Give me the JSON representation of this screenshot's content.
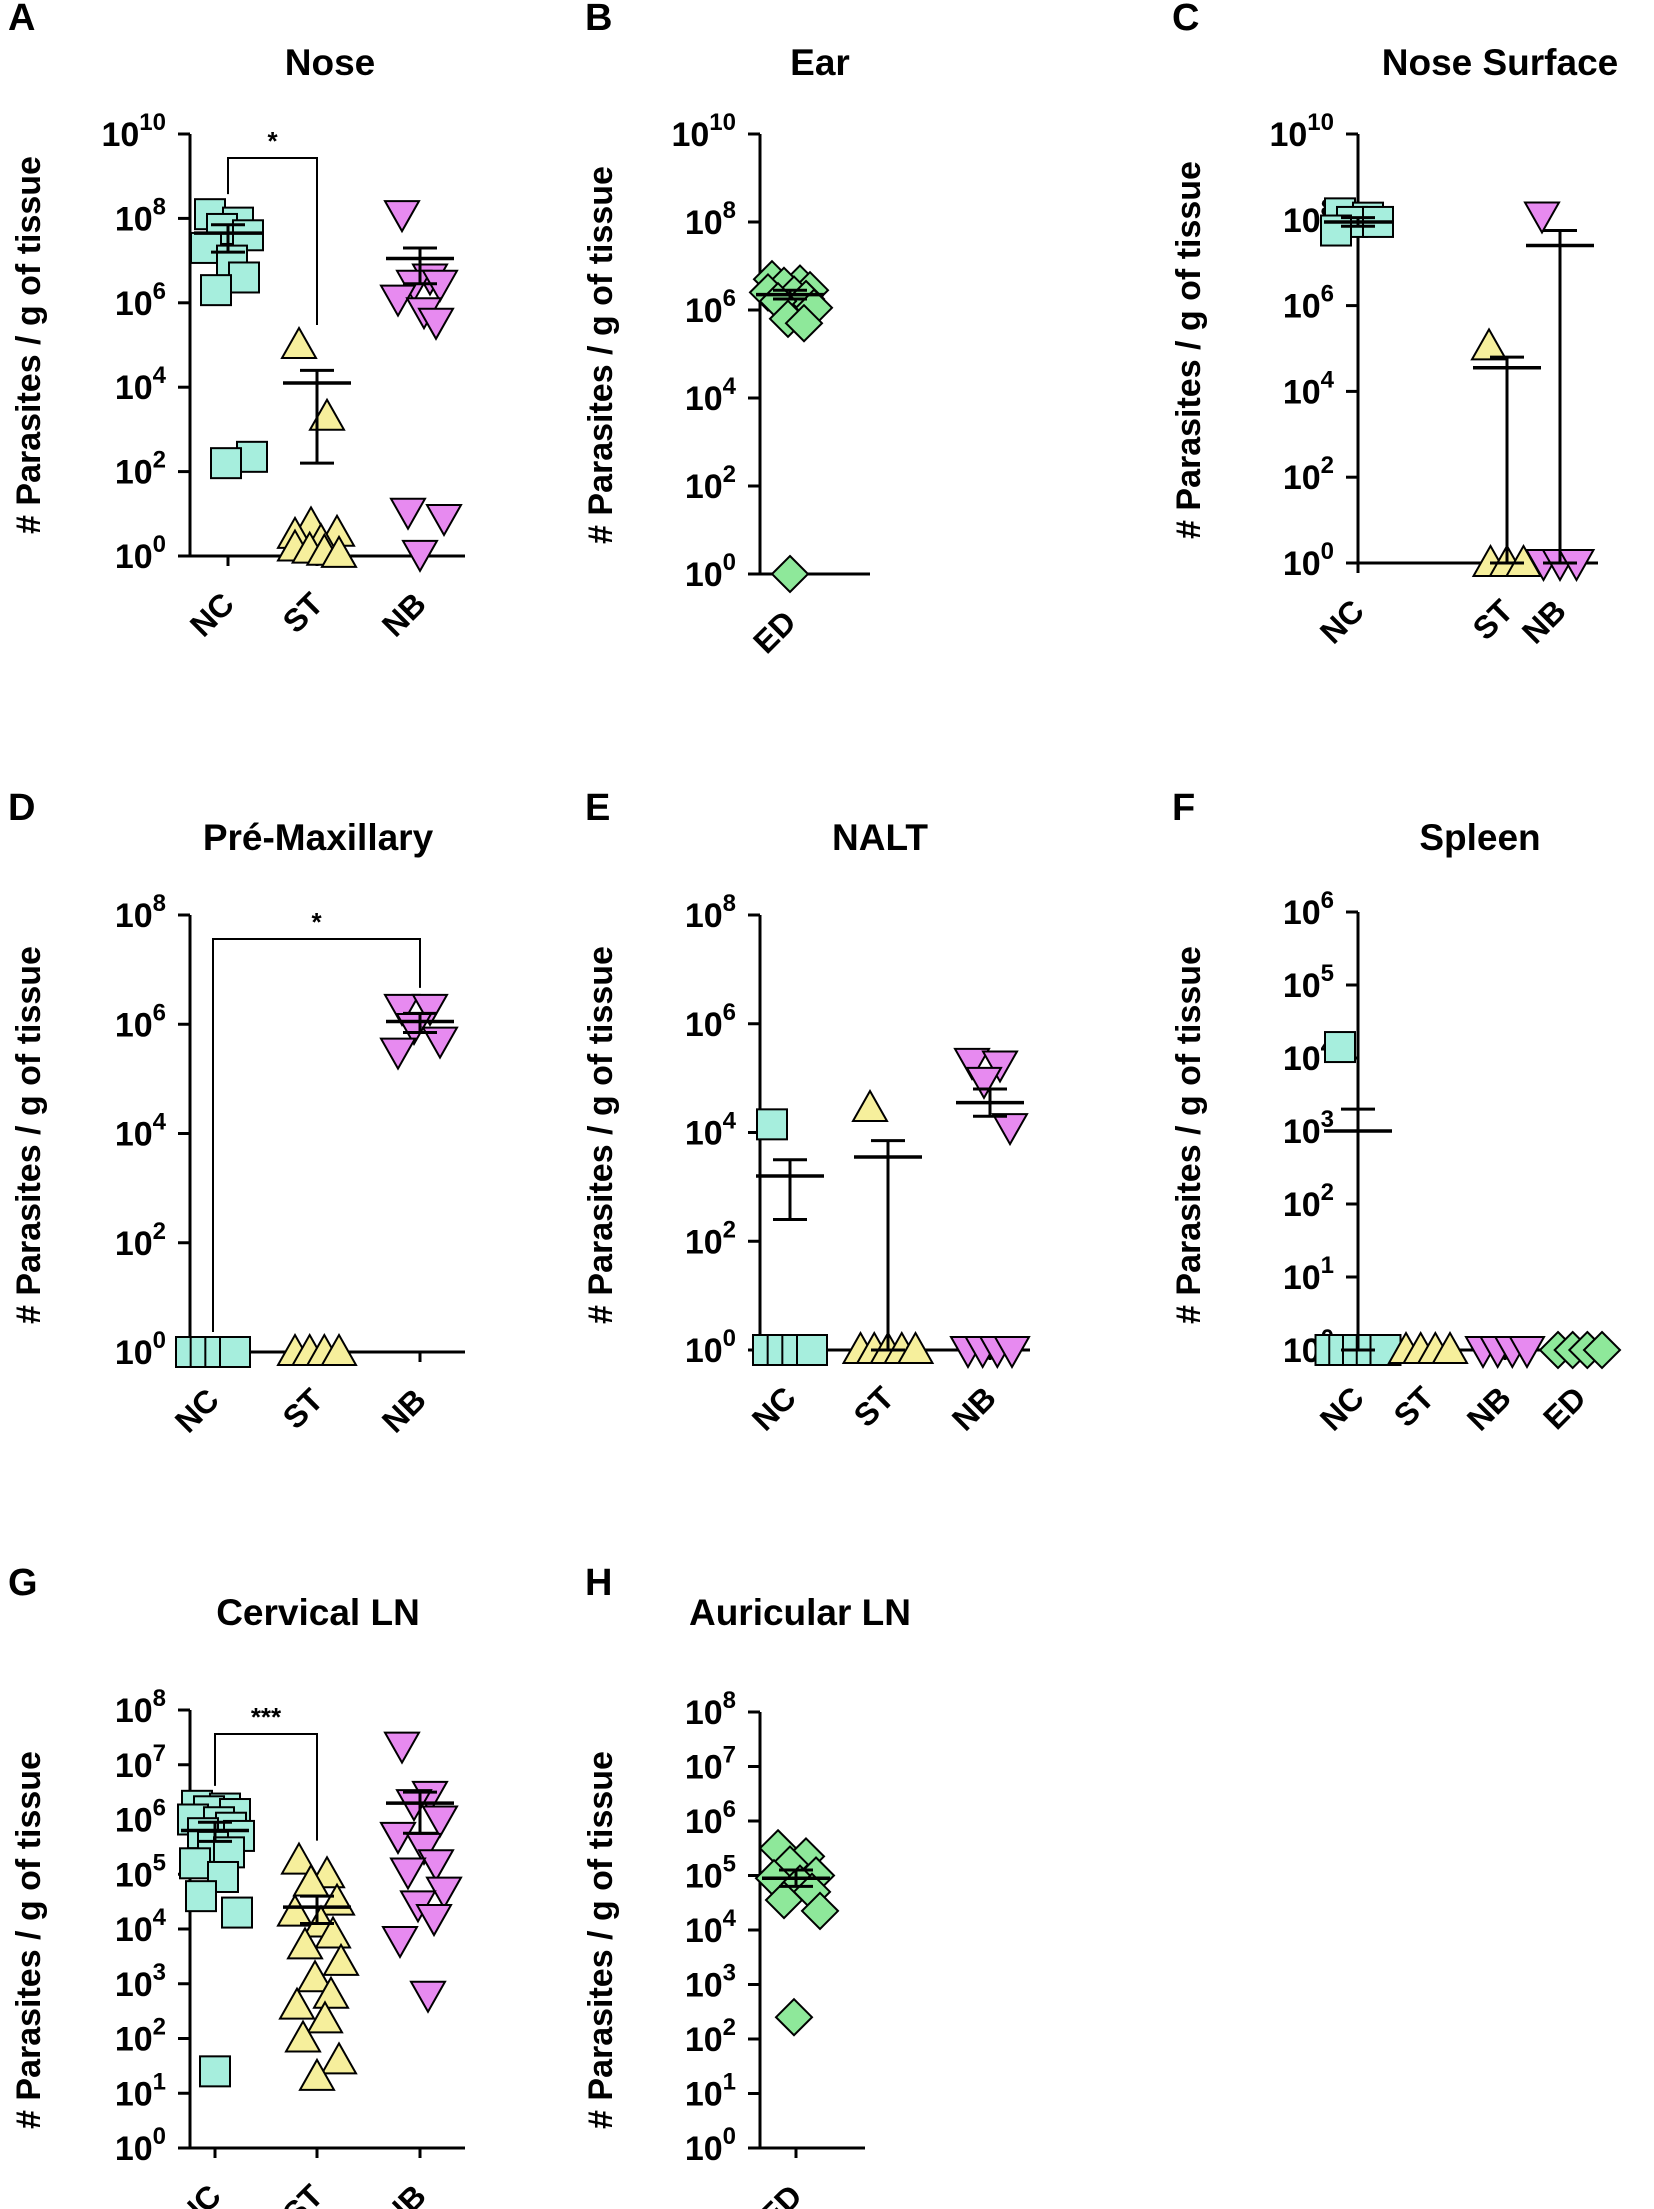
{
  "figure": {
    "ylabel": "# Parasites / g of tissue",
    "colors": {
      "NC": "#a6eedd",
      "ST": "#f6ef9c",
      "NB": "#e78af0",
      "ED": "#8ee89a",
      "stroke": "#000000"
    },
    "shapes": {
      "NC": "square",
      "ST": "triangle-up",
      "NB": "triangle-down",
      "ED": "diamond"
    }
  },
  "chart_data": [
    {
      "type": "scatter",
      "letter": "A",
      "title": "Nose",
      "ylabel": "# Parasites / g of tissue",
      "yscale": "log10",
      "ylim_exp": [
        0,
        10
      ],
      "yticks": [
        {
          "base": "10",
          "exp": "10"
        },
        {
          "base": "10",
          "exp": "8"
        },
        {
          "base": "10",
          "exp": "6"
        },
        {
          "base": "10",
          "exp": "4"
        },
        {
          "base": "10",
          "exp": "2"
        },
        {
          "base": "10",
          "exp": "0"
        }
      ],
      "ytick_values": [
        10,
        8,
        6,
        4,
        2,
        0
      ],
      "categories": [
        "NC",
        "ST",
        "NB"
      ],
      "groups": [
        {
          "name": "NC",
          "log_values": [
            8.1,
            7.9,
            7.75,
            7.6,
            7.3,
            7.0,
            6.6,
            6.3,
            2.35,
            2.2
          ],
          "mean_log": 7.65,
          "sem_log": [
            7.85,
            7.2
          ]
        },
        {
          "name": "ST",
          "log_values": [
            5.0,
            3.3,
            0.75,
            0.55,
            0.5,
            0.35,
            0.2,
            0.15,
            0.1,
            0.05
          ],
          "mean_log": 4.1,
          "sem_log": [
            4.4,
            2.2
          ]
        },
        {
          "name": "NB",
          "log_values": [
            8.1,
            6.6,
            6.45,
            6.45,
            6.1,
            5.8,
            5.55,
            1.05,
            0.9,
            0.05
          ],
          "mean_log": 7.05,
          "sem_log": [
            7.3,
            6.45
          ]
        }
      ],
      "significance": [
        {
          "from": "NC",
          "to": "ST",
          "label": "*"
        }
      ]
    },
    {
      "type": "scatter",
      "letter": "B",
      "title": "Ear",
      "ylabel": "# Parasites / g of tissue",
      "yscale": "log10",
      "ylim_exp": [
        0,
        10
      ],
      "yticks": [
        {
          "base": "10",
          "exp": "10"
        },
        {
          "base": "10",
          "exp": "8"
        },
        {
          "base": "10",
          "exp": "6"
        },
        {
          "base": "10",
          "exp": "4"
        },
        {
          "base": "10",
          "exp": "2"
        },
        {
          "base": "10",
          "exp": "0"
        }
      ],
      "ytick_values": [
        10,
        8,
        6,
        4,
        2,
        0
      ],
      "categories": [
        "ED"
      ],
      "groups": [
        {
          "name": "ED",
          "log_values": [
            6.7,
            6.6,
            6.55,
            6.45,
            6.4,
            6.35,
            6.25,
            6.2,
            6.05,
            5.8,
            5.7,
            0.0
          ],
          "mean_log": 6.35,
          "sem_log": [
            6.45,
            6.25
          ]
        }
      ],
      "significance": []
    },
    {
      "type": "scatter",
      "letter": "C",
      "title": "Nose Surface",
      "ylabel": "# Parasites / g of tissue",
      "yscale": "log10",
      "ylim_exp": [
        0,
        10
      ],
      "yticks": [
        {
          "base": "10",
          "exp": "10"
        },
        {
          "base": "10",
          "exp": "8"
        },
        {
          "base": "10",
          "exp": "6"
        },
        {
          "base": "10",
          "exp": "4"
        },
        {
          "base": "10",
          "exp": "2"
        },
        {
          "base": "10",
          "exp": "0"
        }
      ],
      "ytick_values": [
        10,
        8,
        6,
        4,
        2,
        0
      ],
      "categories": [
        "NC",
        "ST",
        "NB"
      ],
      "groups": [
        {
          "name": "NC",
          "log_values": [
            8.15,
            8.05,
            7.95,
            7.95,
            7.75
          ],
          "mean_log": 7.95,
          "sem_log": [
            8.05,
            7.85
          ]
        },
        {
          "name": "ST",
          "log_values": [
            5.05,
            0.0,
            0.0,
            0.0
          ],
          "mean_log": 4.55,
          "sem_log": [
            4.8,
            0.0
          ]
        },
        {
          "name": "NB",
          "log_values": [
            8.1,
            0.0,
            0.0,
            0.0
          ],
          "mean_log": 7.4,
          "sem_log": [
            7.75,
            0.0
          ]
        }
      ],
      "significance": []
    },
    {
      "type": "scatter",
      "letter": "D",
      "title": "Pré-Maxillary",
      "ylabel": "# Parasites / g of tissue",
      "yscale": "log10",
      "ylim_exp": [
        0,
        8
      ],
      "yticks": [
        {
          "base": "10",
          "exp": "8"
        },
        {
          "base": "10",
          "exp": "6"
        },
        {
          "base": "10",
          "exp": "4"
        },
        {
          "base": "10",
          "exp": "2"
        },
        {
          "base": "10",
          "exp": "0"
        }
      ],
      "ytick_values": [
        8,
        6,
        4,
        2,
        0
      ],
      "categories": [
        "NC",
        "ST",
        "NB"
      ],
      "groups": [
        {
          "name": "NC",
          "log_values": [
            0.0,
            0.0,
            0.0,
            0.0
          ],
          "mean_log": null,
          "sem_log": null
        },
        {
          "name": "ST",
          "log_values": [
            0.0,
            0.0,
            0.0,
            0.0
          ],
          "mean_log": null,
          "sem_log": null
        },
        {
          "name": "NB",
          "log_values": [
            6.3,
            6.3,
            5.95,
            5.7,
            5.5
          ],
          "mean_log": 6.05,
          "sem_log": [
            6.2,
            5.85
          ]
        }
      ],
      "significance": [
        {
          "from": "NC",
          "to": "NB",
          "label": "*"
        }
      ]
    },
    {
      "type": "scatter",
      "letter": "E",
      "title": "NALT",
      "ylabel": "# Parasites / g of tissue",
      "yscale": "log10",
      "ylim_exp": [
        0,
        8
      ],
      "yticks": [
        {
          "base": "10",
          "exp": "8"
        },
        {
          "base": "10",
          "exp": "6"
        },
        {
          "base": "10",
          "exp": "4"
        },
        {
          "base": "10",
          "exp": "2"
        },
        {
          "base": "10",
          "exp": "0"
        }
      ],
      "ytick_values": [
        8,
        6,
        4,
        2,
        0
      ],
      "categories": [
        "NC",
        "ST",
        "NB"
      ],
      "groups": [
        {
          "name": "NC",
          "log_values": [
            4.15,
            0.0,
            0.0,
            0.0,
            0.0
          ],
          "mean_log": 3.2,
          "sem_log": [
            3.5,
            2.4
          ]
        },
        {
          "name": "ST",
          "log_values": [
            4.45,
            0.0,
            0.0,
            0.0,
            0.0,
            0.0
          ],
          "mean_log": 3.55,
          "sem_log": [
            3.85,
            0.0
          ]
        },
        {
          "name": "NB",
          "log_values": [
            5.3,
            5.25,
            4.95,
            4.1,
            0.0,
            0.0,
            0.0,
            0.0
          ],
          "mean_log": 4.55,
          "sem_log": [
            4.8,
            4.3
          ]
        }
      ],
      "significance": []
    },
    {
      "type": "scatter",
      "letter": "F",
      "title": "Spleen",
      "ylabel": "# Parasites / g of tissue",
      "yscale": "log10",
      "ylim_exp": [
        0,
        6
      ],
      "yticks": [
        {
          "base": "10",
          "exp": "6"
        },
        {
          "base": "10",
          "exp": "5"
        },
        {
          "base": "10",
          "exp": "4"
        },
        {
          "base": "10",
          "exp": "3"
        },
        {
          "base": "10",
          "exp": "2"
        },
        {
          "base": "10",
          "exp": "1"
        },
        {
          "base": "10",
          "exp": "0"
        }
      ],
      "ytick_values": [
        6,
        5,
        4,
        3,
        2,
        1,
        0
      ],
      "categories": [
        "NC",
        "ST",
        "NB",
        "ED"
      ],
      "groups": [
        {
          "name": "NC",
          "log_values": [
            4.15,
            0.0,
            0.0,
            0.0,
            0.0,
            0.0
          ],
          "mean_log": 3.0,
          "sem_log": [
            3.3,
            0.0
          ]
        },
        {
          "name": "ST",
          "log_values": [
            0.0,
            0.0,
            0.0,
            0.0
          ],
          "mean_log": null,
          "sem_log": null
        },
        {
          "name": "NB",
          "log_values": [
            0.0,
            0.0,
            0.0,
            0.0
          ],
          "mean_log": null,
          "sem_log": null
        },
        {
          "name": "ED",
          "log_values": [
            0.0,
            0.0,
            0.0,
            0.0
          ],
          "mean_log": null,
          "sem_log": null
        }
      ],
      "significance": []
    },
    {
      "type": "scatter",
      "letter": "G",
      "title": "Cervical LN",
      "ylabel": "# Parasites / g of tissue",
      "yscale": "log10",
      "ylim_exp": [
        0,
        8
      ],
      "yticks": [
        {
          "base": "10",
          "exp": "8"
        },
        {
          "base": "10",
          "exp": "7"
        },
        {
          "base": "10",
          "exp": "6"
        },
        {
          "base": "10",
          "exp": "5"
        },
        {
          "base": "10",
          "exp": "4"
        },
        {
          "base": "10",
          "exp": "3"
        },
        {
          "base": "10",
          "exp": "2"
        },
        {
          "base": "10",
          "exp": "1"
        },
        {
          "base": "10",
          "exp": "0"
        }
      ],
      "ytick_values": [
        8,
        7,
        6,
        5,
        4,
        3,
        2,
        1,
        0
      ],
      "categories": [
        "NC",
        "ST",
        "NB"
      ],
      "groups": [
        {
          "name": "NC",
          "log_values": [
            6.25,
            6.2,
            6.15,
            6.1,
            6.0,
            5.95,
            5.85,
            5.75,
            5.7,
            5.5,
            5.4,
            5.2,
            4.95,
            4.6,
            4.3,
            1.4
          ],
          "mean_log": 5.8,
          "sem_log": [
            5.95,
            5.6
          ]
        },
        {
          "name": "ST",
          "log_values": [
            5.25,
            5.0,
            4.85,
            4.5,
            4.3,
            4.1,
            3.9,
            3.7,
            3.4,
            3.1,
            2.8,
            2.6,
            2.35,
            2.0,
            1.6,
            1.3
          ],
          "mean_log": 4.4,
          "sem_log": [
            4.6,
            4.1
          ]
        },
        {
          "name": "NB",
          "log_values": [
            7.35,
            6.45,
            6.3,
            6.0,
            5.7,
            5.5,
            5.2,
            5.05,
            4.7,
            4.45,
            4.2,
            3.8,
            2.8
          ],
          "mean_log": 6.3,
          "sem_log": [
            6.5,
            5.75
          ]
        }
      ],
      "significance": [
        {
          "from": "NC",
          "to": "ST",
          "label": "***"
        }
      ]
    },
    {
      "type": "scatter",
      "letter": "H",
      "title": "Auricular LN",
      "ylabel": "# Parasites / g of tissue",
      "yscale": "log10",
      "ylim_exp": [
        0,
        8
      ],
      "yticks": [
        {
          "base": "10",
          "exp": "8"
        },
        {
          "base": "10",
          "exp": "7"
        },
        {
          "base": "10",
          "exp": "6"
        },
        {
          "base": "10",
          "exp": "5"
        },
        {
          "base": "10",
          "exp": "4"
        },
        {
          "base": "10",
          "exp": "3"
        },
        {
          "base": "10",
          "exp": "2"
        },
        {
          "base": "10",
          "exp": "1"
        },
        {
          "base": "10",
          "exp": "0"
        }
      ],
      "ytick_values": [
        8,
        7,
        6,
        5,
        4,
        3,
        2,
        1,
        0
      ],
      "categories": [
        "ED"
      ],
      "groups": [
        {
          "name": "ED",
          "log_values": [
            5.5,
            5.35,
            5.2,
            5.0,
            4.95,
            4.85,
            4.7,
            4.55,
            4.35,
            2.4
          ],
          "mean_log": 4.95,
          "sem_log": [
            5.1,
            4.8
          ]
        }
      ],
      "significance": []
    }
  ]
}
